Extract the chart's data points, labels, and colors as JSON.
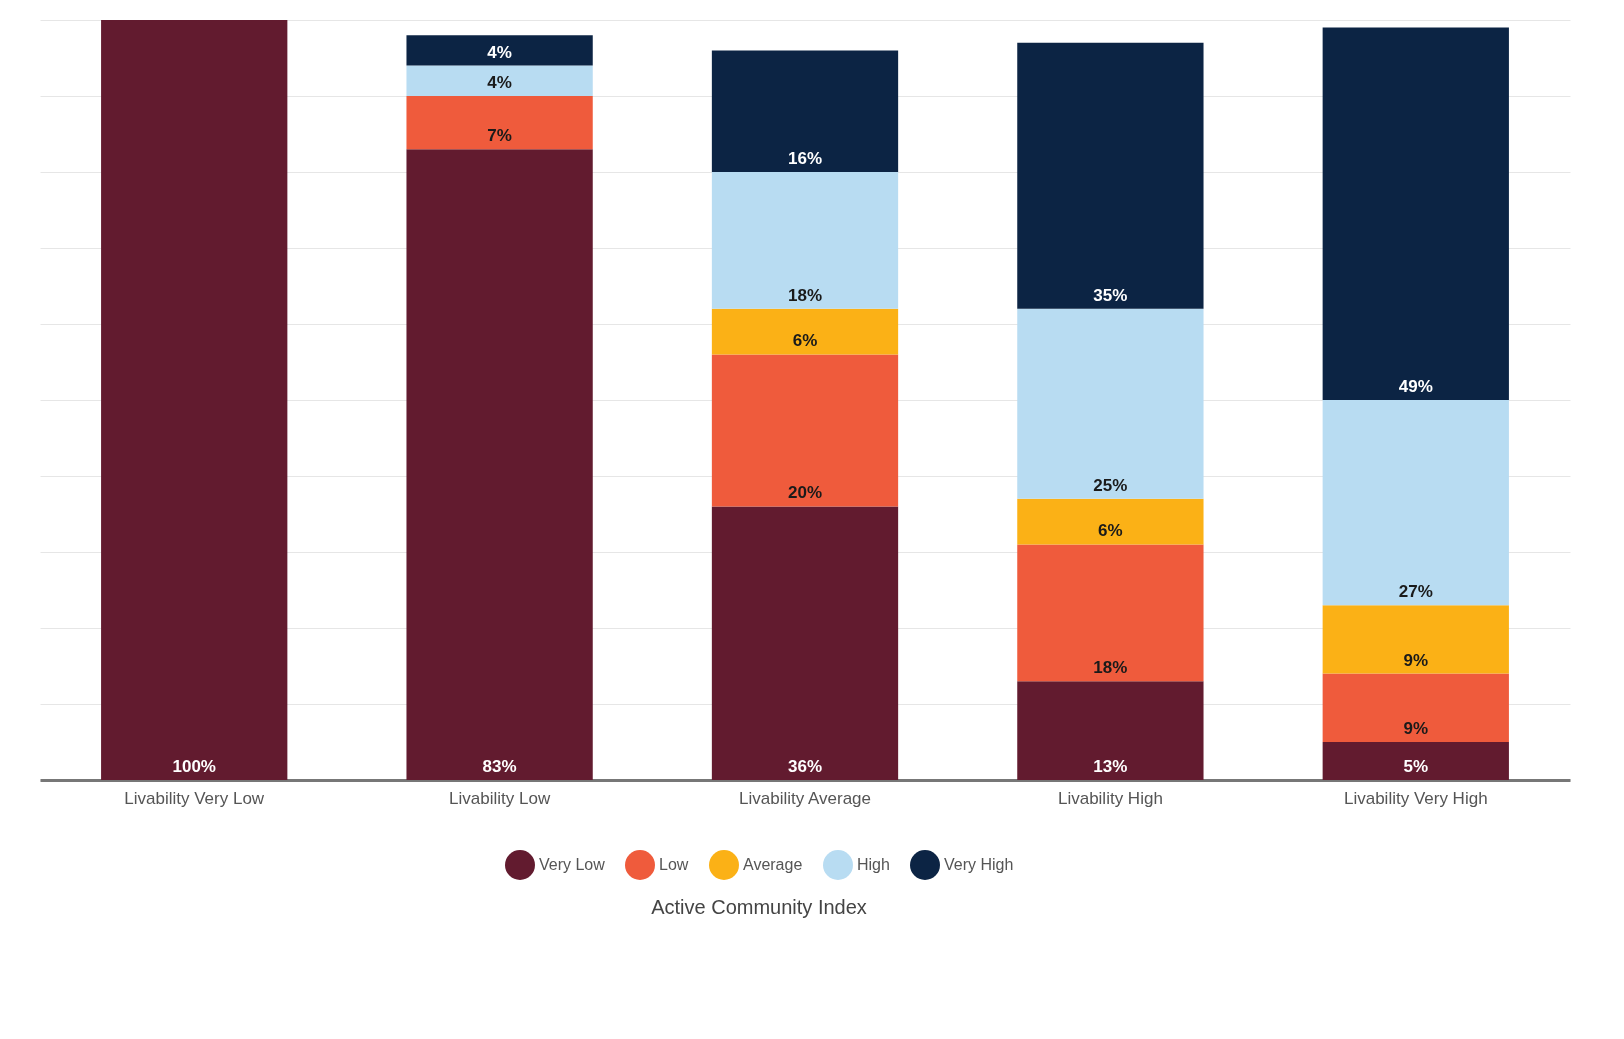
{
  "chart_data": {
    "type": "bar",
    "stacked": true,
    "legend_title": "Active Community Index",
    "legend": "bottom",
    "grid": "y",
    "tick_labels": "x",
    "categories": [
      "Livability Very Low",
      "Livability Low",
      "Livability Average",
      "Livability High",
      "Livability Very High"
    ],
    "ylim": [
      0,
      100
    ],
    "yticks": [
      {
        "value": 0,
        "label": null
      },
      {
        "value": 10,
        "label": null
      },
      {
        "value": 20,
        "label": null
      },
      {
        "value": 30,
        "label": null
      },
      {
        "value": 40,
        "label": null
      },
      {
        "value": 50,
        "label": null
      },
      {
        "value": 60,
        "label": null
      },
      {
        "value": 70,
        "label": null
      },
      {
        "value": 80,
        "label": null
      },
      {
        "value": 90,
        "label": null
      },
      {
        "value": 100,
        "label": null
      }
    ],
    "series": [
      {
        "name": "Very Low",
        "color": "#621b2f",
        "values": [
          100,
          83,
          36,
          13,
          5
        ],
        "value_labels": [
          "100%",
          "83%",
          "36%",
          "13%",
          "5%"
        ]
      },
      {
        "name": "Low",
        "color": "#ef5b3c",
        "values": [
          null,
          7,
          20,
          18,
          9
        ],
        "value_labels": [
          null,
          "7%",
          "20%",
          "18%",
          "9%"
        ]
      },
      {
        "name": "Average",
        "color": "#fbb116",
        "values": [
          null,
          null,
          6,
          6,
          9
        ],
        "value_labels": [
          null,
          null,
          "6%",
          "6%",
          "9%"
        ]
      },
      {
        "name": "High",
        "color": "#b8dcf2",
        "values": [
          null,
          4,
          18,
          25,
          27
        ],
        "value_labels": [
          null,
          "4%",
          "18%",
          "25%",
          "27%"
        ]
      },
      {
        "name": "Very High",
        "color": "#0c2444",
        "values": [
          null,
          4,
          16,
          35,
          49
        ],
        "value_labels": [
          null,
          "4%",
          "16%",
          "35%",
          "49%"
        ]
      }
    ]
  }
}
